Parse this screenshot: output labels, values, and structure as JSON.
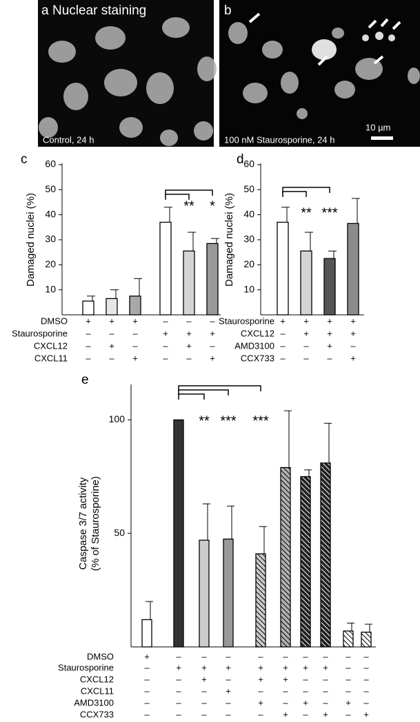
{
  "images": [
    {
      "label": "a",
      "title": "Nuclear staining",
      "caption": "Control, 24 h"
    },
    {
      "label": "b",
      "caption": "100 nM Staurosporine, 24 h",
      "scale_bar": "10 µm"
    }
  ],
  "chart_data": [
    {
      "type": "bar",
      "panel": "c",
      "y_label": "Damaged nuclei (%)",
      "ylim": [
        0,
        60
      ],
      "yticks": [
        10,
        20,
        30,
        40,
        50,
        60
      ],
      "values": [
        5.5,
        6.5,
        7.5,
        37,
        25.5,
        28.5
      ],
      "errors": [
        2,
        3.5,
        7,
        6,
        7.5,
        2
      ],
      "colors": [
        "#ffffff",
        "#e6e6e6",
        "#a8a8a8",
        "#ffffff",
        "#d4d4d4",
        "#999999"
      ],
      "hatched": [
        false,
        false,
        false,
        false,
        false,
        false
      ],
      "treatments": [
        {
          "name": "DMSO",
          "marks": [
            "+",
            "+",
            "+",
            "–",
            "–",
            "–"
          ]
        },
        {
          "name": "Staurosporine",
          "marks": [
            "–",
            "–",
            "–",
            "+",
            "+",
            "+"
          ]
        },
        {
          "name": "CXCL12",
          "marks": [
            "–",
            "+",
            "–",
            "–",
            "+",
            "–"
          ]
        },
        {
          "name": "CXCL11",
          "marks": [
            "–",
            "–",
            "+",
            "–",
            "–",
            "+"
          ]
        }
      ],
      "annotations": [
        "**",
        "*"
      ]
    },
    {
      "type": "bar",
      "panel": "d",
      "y_label": "Damaged nuclei (%)",
      "ylim": [
        0,
        60
      ],
      "yticks": [
        10,
        20,
        30,
        40,
        50,
        60
      ],
      "values": [
        37,
        25.5,
        22.5,
        36.5
      ],
      "errors": [
        6,
        7.5,
        3,
        10
      ],
      "colors": [
        "#ffffff",
        "#d4d4d4",
        "#555555",
        "#8c8c8c"
      ],
      "hatched": [
        false,
        false,
        false,
        false
      ],
      "treatments": [
        {
          "name": "Staurosporine",
          "marks": [
            "+",
            "+",
            "+",
            "+"
          ]
        },
        {
          "name": "CXCL12",
          "marks": [
            "–",
            "+",
            "+",
            "+"
          ]
        },
        {
          "name": "AMD3100",
          "marks": [
            "–",
            "–",
            "+",
            "–"
          ]
        },
        {
          "name": "CCX733",
          "marks": [
            "–",
            "–",
            "–",
            "+"
          ]
        }
      ],
      "annotations": [
        "**",
        "***"
      ]
    },
    {
      "type": "bar",
      "panel": "e",
      "y_label": "Caspase 3/7 activity\n(% of Staurosporine)",
      "ylim": [
        0,
        115
      ],
      "yticks": [
        50,
        100
      ],
      "values": [
        12,
        100,
        47,
        47.5,
        41,
        79,
        75,
        81,
        7,
        6.5
      ],
      "errors": [
        8,
        0,
        16,
        14.5,
        12,
        25,
        3,
        17.5,
        3.5,
        3.5
      ],
      "colors": [
        "#ffffff",
        "#333333",
        "#cccccc",
        "#999999",
        "#cccccc",
        "#b0b0b0",
        "#222222",
        "#222222",
        "#ffffff",
        "#ffffff"
      ],
      "hatched": [
        false,
        false,
        false,
        false,
        true,
        true,
        true,
        true,
        true,
        true
      ],
      "treatments": [
        {
          "name": "DMSO",
          "marks": [
            "+",
            "–",
            "–",
            "–",
            "–",
            "–",
            "–",
            "–",
            "–",
            "–"
          ]
        },
        {
          "name": "Staurosporine",
          "marks": [
            "–",
            "+",
            "+",
            "+",
            "+",
            "+",
            "+",
            "+",
            "–",
            "–"
          ]
        },
        {
          "name": "CXCL12",
          "marks": [
            "–",
            "–",
            "+",
            "–",
            "+",
            "+",
            "–",
            "–",
            "–",
            "–"
          ]
        },
        {
          "name": "CXCL11",
          "marks": [
            "–",
            "–",
            "–",
            "+",
            "–",
            "–",
            "–",
            "–",
            "–",
            "–"
          ]
        },
        {
          "name": "AMD3100",
          "marks": [
            "–",
            "–",
            "–",
            "–",
            "+",
            "–",
            "+",
            "–",
            "+",
            "–"
          ]
        },
        {
          "name": "CCX733",
          "marks": [
            "–",
            "–",
            "–",
            "–",
            "–",
            "+",
            "–",
            "+",
            "–",
            "+"
          ]
        }
      ],
      "annotations": [
        "**",
        "***",
        "***"
      ]
    }
  ]
}
